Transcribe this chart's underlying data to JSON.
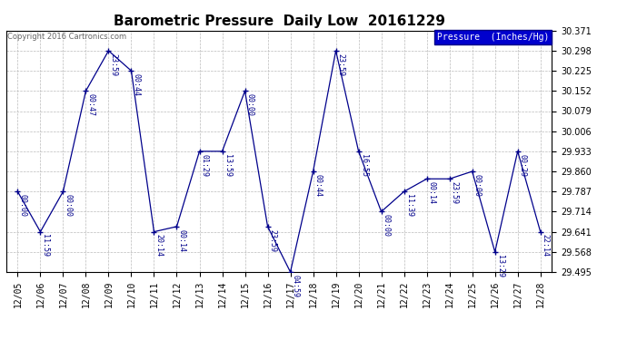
{
  "title": "Barometric Pressure  Daily Low  20161229",
  "copyright": "Copyright 2016 Cartronics.com",
  "legend_label": "Pressure  (Inches/Hg)",
  "ylim": [
    29.495,
    30.371
  ],
  "yticks": [
    29.495,
    29.568,
    29.641,
    29.714,
    29.787,
    29.86,
    29.933,
    30.006,
    30.079,
    30.152,
    30.225,
    30.298,
    30.371
  ],
  "background_color": "#ffffff",
  "line_color": "#00008B",
  "grid_color": "#bbbbbb",
  "dates": [
    "12/05",
    "12/06",
    "12/07",
    "12/08",
    "12/09",
    "12/10",
    "12/11",
    "12/12",
    "12/13",
    "12/14",
    "12/15",
    "12/16",
    "12/17",
    "12/18",
    "12/19",
    "12/20",
    "12/21",
    "12/22",
    "12/23",
    "12/24",
    "12/25",
    "12/26",
    "12/27",
    "12/28"
  ],
  "values": [
    29.787,
    29.641,
    29.787,
    30.152,
    30.298,
    30.225,
    29.641,
    29.66,
    29.933,
    29.933,
    30.152,
    29.66,
    29.495,
    29.86,
    30.298,
    29.933,
    29.714,
    29.787,
    29.833,
    29.833,
    29.86,
    29.568,
    29.933,
    29.641
  ],
  "point_labels": [
    "00:00",
    "11:59",
    "00:00",
    "00:47",
    "23:59",
    "00:44",
    "20:14",
    "00:14",
    "01:29",
    "13:59",
    "00:00",
    "23:59",
    "04:59",
    "00:44",
    "23:59",
    "16:55",
    "00:00",
    "11:39",
    "00:14",
    "23:59",
    "00:00",
    "13:29",
    "00:29",
    "22:14"
  ],
  "title_fontsize": 11,
  "label_fontsize": 6,
  "tick_fontsize": 7,
  "copyright_fontsize": 6
}
